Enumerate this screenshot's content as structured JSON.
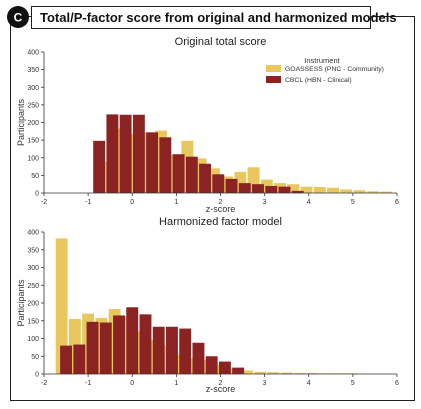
{
  "panel": {
    "badge": "C",
    "heading": "Total/P-factor score from original and harmonized models"
  },
  "colors": {
    "goassess": "#E8C75E",
    "cbcl": "#8B2323",
    "axis": "#333333",
    "frame": "#222222"
  },
  "chart_data": [
    {
      "type": "bar",
      "title": "Original total score",
      "xlabel": "z-score",
      "ylabel": "Participants",
      "xlim": [
        -2,
        6
      ],
      "ylim": [
        0,
        400
      ],
      "xticks": [
        "-2",
        "-1",
        "0",
        "1",
        "2",
        "3",
        "4",
        "5",
        "6"
      ],
      "yticks": [
        "0",
        "50",
        "100",
        "150",
        "200",
        "250",
        "300",
        "350",
        "400"
      ],
      "grid": false,
      "legend": {
        "title": "Instrument",
        "position": "top-right",
        "entries": [
          "GOASSESS (PNC - Community)",
          "CBCL (HBN - Clinical)"
        ]
      },
      "series": [
        {
          "name": "GOASSESS (PNC - Community)",
          "color": "#E8C75E",
          "x": [
            -0.55,
            -0.25,
            0.05,
            0.35,
            0.65,
            0.95,
            1.25,
            1.55,
            1.85,
            2.15,
            2.45,
            2.75,
            3.05,
            3.35,
            3.65,
            3.95,
            4.25,
            4.55,
            4.85,
            5.15,
            5.45,
            5.75
          ],
          "values": [
            88,
            183,
            168,
            172,
            177,
            108,
            148,
            98,
            70,
            47,
            60,
            73,
            38,
            28,
            25,
            18,
            17,
            15,
            10,
            8,
            5,
            4
          ]
        },
        {
          "name": "CBCL (HBN - Clinical)",
          "color": "#8B2323",
          "x": [
            -0.75,
            -0.45,
            -0.15,
            0.15,
            0.45,
            0.75,
            1.05,
            1.35,
            1.65,
            1.95,
            2.25,
            2.55,
            2.85,
            3.15,
            3.45,
            3.75
          ],
          "values": [
            148,
            223,
            222,
            222,
            172,
            158,
            110,
            103,
            83,
            53,
            40,
            28,
            25,
            20,
            18,
            6
          ]
        }
      ]
    },
    {
      "type": "bar",
      "title": "Harmonized factor model",
      "xlabel": "z-score",
      "ylabel": "Participants",
      "xlim": [
        -2,
        6
      ],
      "ylim": [
        0,
        400
      ],
      "xticks": [
        "-2",
        "-1",
        "0",
        "1",
        "2",
        "3",
        "4",
        "5",
        "6"
      ],
      "yticks": [
        "0",
        "50",
        "100",
        "150",
        "200",
        "250",
        "300",
        "350",
        "400"
      ],
      "grid": false,
      "series": [
        {
          "name": "GOASSESS (PNC - Community)",
          "color": "#E8C75E",
          "x": [
            -1.6,
            -1.3,
            -1.0,
            -0.7,
            -0.4,
            -0.1,
            0.2,
            0.5,
            0.8,
            1.1,
            1.4,
            1.7,
            2.0,
            2.3,
            2.6,
            2.9,
            3.2,
            3.5,
            3.8,
            4.1,
            4.4,
            4.7,
            5.0,
            5.3
          ],
          "values": [
            382,
            155,
            170,
            158,
            183,
            163,
            120,
            95,
            80,
            55,
            45,
            40,
            25,
            15,
            10,
            6,
            5,
            4,
            3,
            3,
            2,
            2,
            2,
            1
          ]
        },
        {
          "name": "CBCL (HBN - Clinical)",
          "color": "#8B2323",
          "x": [
            -1.5,
            -1.2,
            -0.9,
            -0.6,
            -0.3,
            0.0,
            0.3,
            0.6,
            0.9,
            1.2,
            1.5,
            1.8,
            2.1,
            2.4
          ],
          "values": [
            80,
            83,
            147,
            145,
            165,
            188,
            168,
            133,
            133,
            128,
            88,
            50,
            35,
            18
          ]
        }
      ]
    }
  ]
}
